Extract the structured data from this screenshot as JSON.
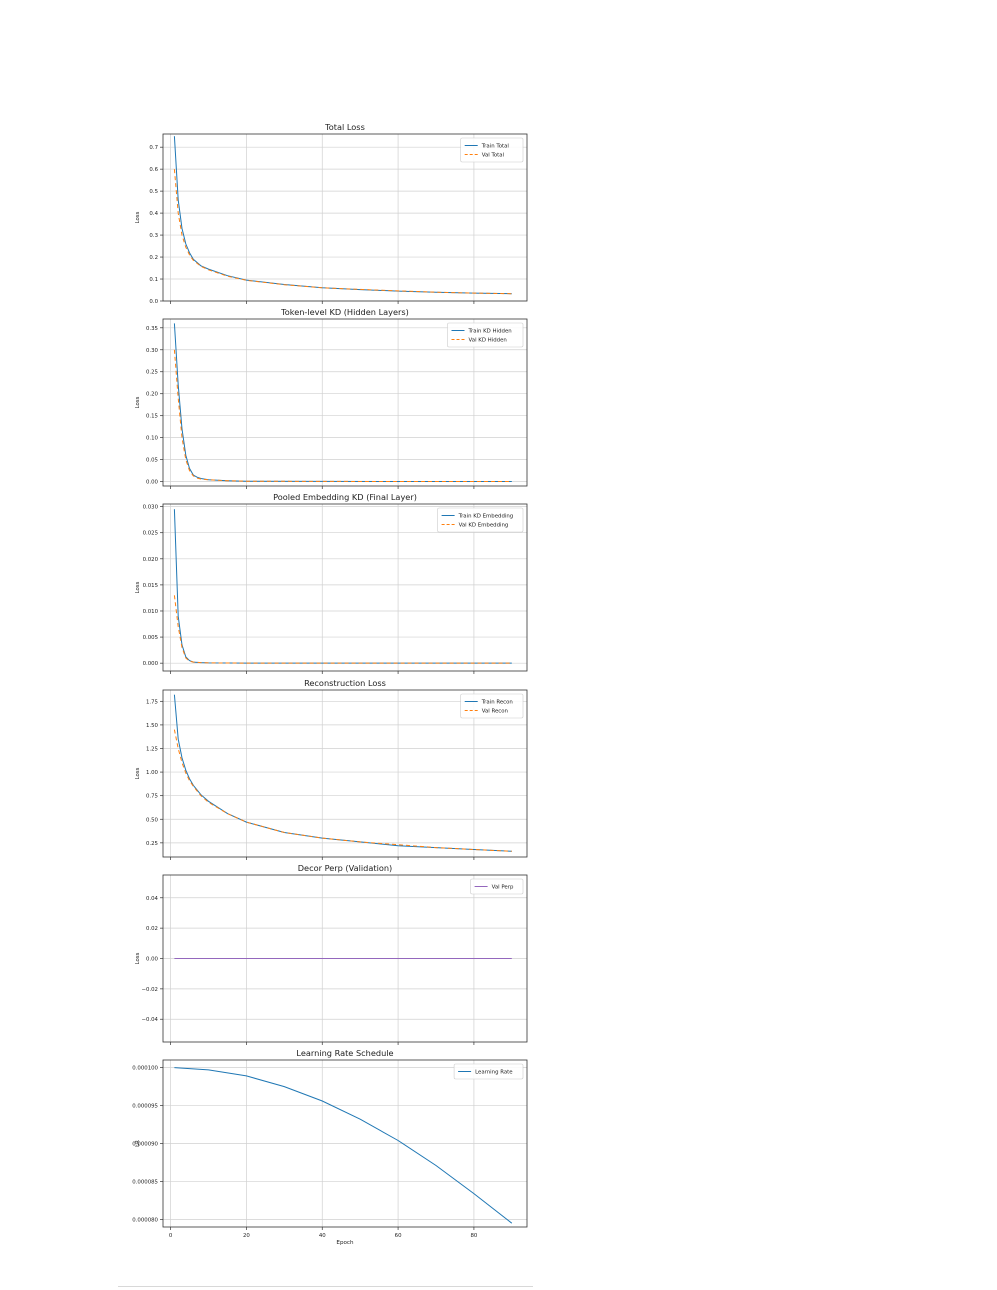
{
  "chart_data": [
    {
      "type": "line",
      "title": "Total Loss",
      "xlabel": "",
      "ylabel": "Loss",
      "xlim": [
        -2,
        94
      ],
      "ylim": [
        0,
        0.76
      ],
      "xticks": [
        0,
        20,
        40,
        60,
        80
      ],
      "xtick_labels": [
        "",
        "",
        "",
        "",
        ""
      ],
      "yticks": [
        0,
        0.1,
        0.2,
        0.3,
        0.4,
        0.5,
        0.6,
        0.7
      ],
      "ytick_labels": [
        "0.0",
        "0.1",
        "0.2",
        "0.3",
        "0.4",
        "0.5",
        "0.6",
        "0.7"
      ],
      "grid": true,
      "legend": "top-right",
      "series": [
        {
          "name": "Train Total",
          "color": "#1f77b4",
          "dash": "",
          "x": [
            1,
            2,
            3,
            4,
            5,
            6,
            8,
            10,
            15,
            20,
            30,
            40,
            50,
            60,
            70,
            80,
            90
          ],
          "y": [
            0.75,
            0.46,
            0.33,
            0.26,
            0.22,
            0.19,
            0.16,
            0.145,
            0.115,
            0.095,
            0.075,
            0.06,
            0.052,
            0.045,
            0.04,
            0.036,
            0.033
          ]
        },
        {
          "name": "Val Total",
          "color": "#ff7f0e",
          "dash": "4,3",
          "x": [
            1,
            2,
            3,
            4,
            5,
            6,
            8,
            10,
            15,
            20,
            30,
            40,
            50,
            60,
            70,
            80,
            90
          ],
          "y": [
            0.6,
            0.4,
            0.3,
            0.245,
            0.21,
            0.185,
            0.158,
            0.142,
            0.113,
            0.094,
            0.074,
            0.06,
            0.053,
            0.046,
            0.04,
            0.036,
            0.033
          ]
        }
      ]
    },
    {
      "type": "line",
      "title": "Token-level KD (Hidden Layers)",
      "xlabel": "",
      "ylabel": "Loss",
      "xlim": [
        -2,
        94
      ],
      "ylim": [
        -0.01,
        0.37
      ],
      "xticks": [
        0,
        20,
        40,
        60,
        80
      ],
      "xtick_labels": [
        "",
        "",
        "",
        "",
        ""
      ],
      "yticks": [
        0,
        0.05,
        0.1,
        0.15,
        0.2,
        0.25,
        0.3,
        0.35
      ],
      "ytick_labels": [
        "0.00",
        "0.05",
        "0.10",
        "0.15",
        "0.20",
        "0.25",
        "0.30",
        "0.35"
      ],
      "grid": true,
      "legend": "top-right",
      "series": [
        {
          "name": "Train KD Hidden",
          "color": "#1f77b4",
          "dash": "",
          "x": [
            1,
            2,
            3,
            4,
            5,
            6,
            7,
            8,
            10,
            15,
            20,
            40,
            60,
            90
          ],
          "y": [
            0.36,
            0.22,
            0.12,
            0.06,
            0.03,
            0.015,
            0.01,
            0.007,
            0.004,
            0.002,
            0.001,
            0.0005,
            0.0003,
            0.0002
          ]
        },
        {
          "name": "Val KD Hidden",
          "color": "#ff7f0e",
          "dash": "4,3",
          "x": [
            1,
            2,
            3,
            4,
            5,
            6,
            7,
            8,
            10,
            15,
            20,
            40,
            60,
            90
          ],
          "y": [
            0.3,
            0.19,
            0.1,
            0.05,
            0.025,
            0.013,
            0.008,
            0.006,
            0.004,
            0.002,
            0.001,
            0.0005,
            0.0003,
            0.0002
          ]
        }
      ]
    },
    {
      "type": "line",
      "title": "Pooled Embedding KD (Final Layer)",
      "xlabel": "",
      "ylabel": "Loss",
      "xlim": [
        -2,
        94
      ],
      "ylim": [
        -0.0015,
        0.0305
      ],
      "xticks": [
        0,
        20,
        40,
        60,
        80
      ],
      "xtick_labels": [
        "",
        "",
        "",
        "",
        ""
      ],
      "yticks": [
        0,
        0.005,
        0.01,
        0.015,
        0.02,
        0.025,
        0.03
      ],
      "ytick_labels": [
        "0.000",
        "0.005",
        "0.010",
        "0.015",
        "0.020",
        "0.025",
        "0.030"
      ],
      "grid": true,
      "legend": "top-right",
      "series": [
        {
          "name": "Train KD Embedding",
          "color": "#1f77b4",
          "dash": "",
          "x": [
            1,
            2,
            3,
            4,
            5,
            6,
            8,
            10,
            20,
            40,
            60,
            90
          ],
          "y": [
            0.0295,
            0.009,
            0.0035,
            0.0012,
            0.0005,
            0.0002,
            0.0001,
            5e-05,
            2e-05,
            1e-05,
            1e-05,
            1e-05
          ]
        },
        {
          "name": "Val KD Embedding",
          "color": "#ff7f0e",
          "dash": "4,3",
          "x": [
            1,
            2,
            3,
            4,
            5,
            6,
            8,
            10,
            20,
            40,
            60,
            90
          ],
          "y": [
            0.013,
            0.007,
            0.003,
            0.001,
            0.0004,
            0.0002,
            0.0001,
            5e-05,
            2e-05,
            1e-05,
            1e-05,
            1e-05
          ]
        }
      ]
    },
    {
      "type": "line",
      "title": "Reconstruction Loss",
      "xlabel": "",
      "ylabel": "Loss",
      "xlim": [
        -2,
        94
      ],
      "ylim": [
        0.1,
        1.87
      ],
      "xticks": [
        0,
        20,
        40,
        60,
        80
      ],
      "xtick_labels": [
        "",
        "",
        "",
        "",
        ""
      ],
      "yticks": [
        0.25,
        0.5,
        0.75,
        1.0,
        1.25,
        1.5,
        1.75
      ],
      "ytick_labels": [
        "0.25",
        "0.50",
        "0.75",
        "1.00",
        "1.25",
        "1.50",
        "1.75"
      ],
      "grid": true,
      "legend": "top-right",
      "series": [
        {
          "name": "Train Recon",
          "color": "#1f77b4",
          "dash": "",
          "x": [
            1,
            2,
            3,
            4,
            5,
            6,
            8,
            10,
            15,
            20,
            30,
            40,
            50,
            60,
            70,
            80,
            90
          ],
          "y": [
            1.82,
            1.35,
            1.15,
            1.02,
            0.93,
            0.86,
            0.76,
            0.69,
            0.56,
            0.47,
            0.36,
            0.3,
            0.26,
            0.22,
            0.2,
            0.18,
            0.16
          ]
        },
        {
          "name": "Val Recon",
          "color": "#ff7f0e",
          "dash": "4,3",
          "x": [
            1,
            2,
            3,
            4,
            5,
            6,
            8,
            10,
            15,
            20,
            30,
            40,
            50,
            60,
            70,
            80,
            90
          ],
          "y": [
            1.45,
            1.25,
            1.1,
            0.99,
            0.91,
            0.85,
            0.75,
            0.68,
            0.56,
            0.47,
            0.36,
            0.3,
            0.26,
            0.23,
            0.2,
            0.18,
            0.16
          ]
        }
      ]
    },
    {
      "type": "line",
      "title": "Decor Perp (Validation)",
      "xlabel": "",
      "ylabel": "Loss",
      "xlim": [
        -2,
        94
      ],
      "ylim": [
        -0.055,
        0.055
      ],
      "xticks": [
        0,
        20,
        40,
        60,
        80
      ],
      "xtick_labels": [
        "",
        "",
        "",
        "",
        ""
      ],
      "yticks": [
        -0.04,
        -0.02,
        0,
        0.02,
        0.04
      ],
      "ytick_labels": [
        "−0.04",
        "−0.02",
        "0.00",
        "0.02",
        "0.04"
      ],
      "grid": true,
      "legend": "top-right",
      "series": [
        {
          "name": "Val Perp",
          "color": "#9467bd",
          "dash": "",
          "x": [
            1,
            90
          ],
          "y": [
            0,
            0
          ]
        }
      ]
    },
    {
      "type": "line",
      "title": "Learning Rate Schedule",
      "xlabel": "Epoch",
      "ylabel": "LR",
      "xlim": [
        -2,
        94
      ],
      "ylim": [
        7.9e-05,
        0.000101
      ],
      "xticks": [
        0,
        20,
        40,
        60,
        80
      ],
      "xtick_labels": [
        "0",
        "20",
        "40",
        "60",
        "80"
      ],
      "yticks": [
        8e-05,
        8.5e-05,
        9e-05,
        9.5e-05,
        0.0001
      ],
      "ytick_labels": [
        "0.000080",
        "0.000085",
        "0.000090",
        "0.000095",
        "0.000100"
      ],
      "grid": true,
      "legend": "top-right",
      "series": [
        {
          "name": "Learning Rate",
          "color": "#1f77b4",
          "dash": "",
          "x": [
            1,
            10,
            20,
            30,
            40,
            50,
            60,
            70,
            80,
            90
          ],
          "y": [
            0.0001,
            9.97e-05,
            9.89e-05,
            9.75e-05,
            9.56e-05,
            9.32e-05,
            9.04e-05,
            8.71e-05,
            8.34e-05,
            7.95e-05
          ]
        }
      ]
    }
  ]
}
